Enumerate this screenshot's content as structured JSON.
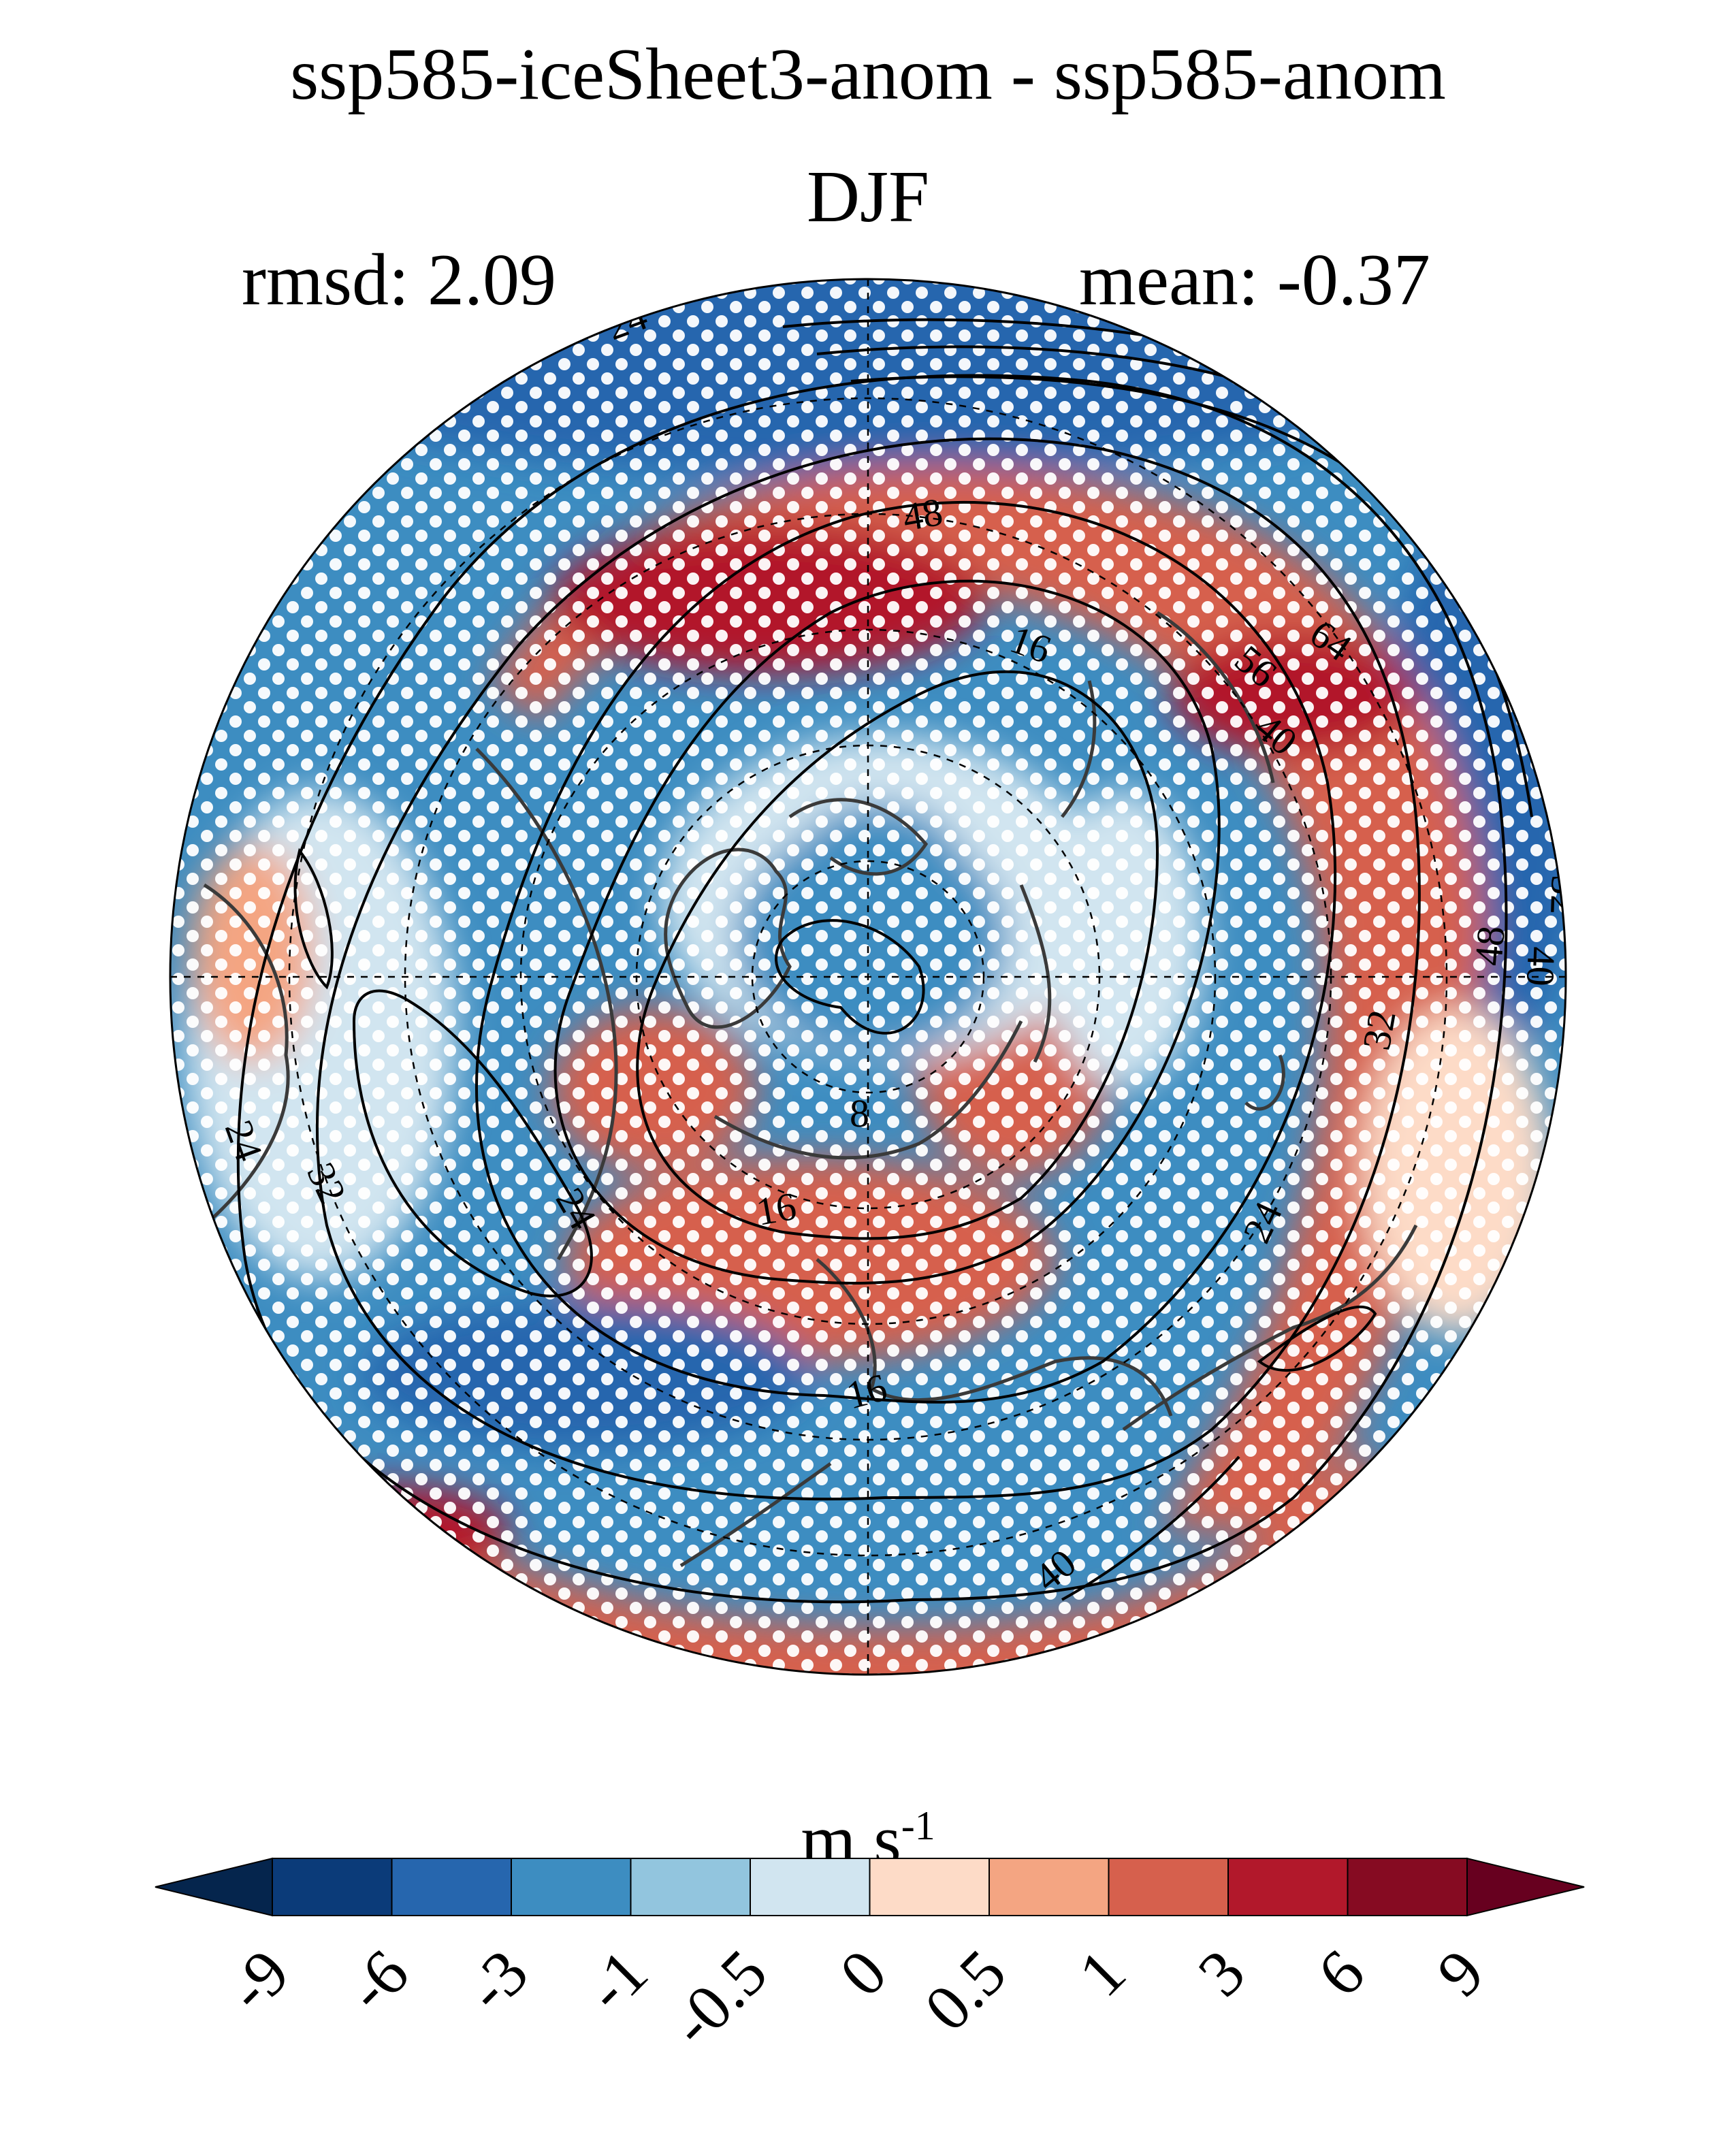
{
  "title": "ssp585-iceSheet3-anom - ssp585-anom",
  "season": "DJF",
  "stats": {
    "rmsd": "rmsd: 2.09",
    "mean": "mean: -0.37"
  },
  "units": {
    "base": "m s",
    "exponent": "-1"
  },
  "colorbar": {
    "levels": [
      "-9",
      "-6",
      "-3",
      "-1",
      "-0.5",
      "0",
      "0.5",
      "1",
      "3",
      "6",
      "9"
    ],
    "colors": [
      "#05254d",
      "#0b3b79",
      "#2666ae",
      "#3d8dc1",
      "#92c5de",
      "#d1e5f0",
      "#fddbc7",
      "#f4a582",
      "#d6604d",
      "#b2182b",
      "#860b22",
      "#67001f"
    ]
  },
  "contour_labels": [
    "24",
    "48",
    "16",
    "64",
    "56",
    "40",
    "8",
    "16",
    "24",
    "32",
    "24",
    "16",
    "40",
    "24",
    "32",
    "48",
    "40",
    "32"
  ],
  "map_colors": {
    "ocean_light": "#d1e5f0",
    "coast": "#3a3a3a",
    "stipple": "#ffffff"
  }
}
